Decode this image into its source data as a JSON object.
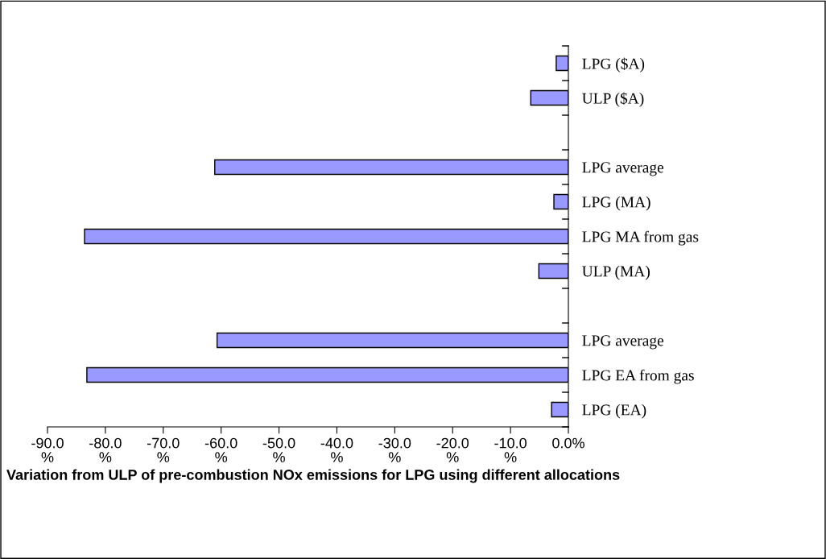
{
  "chart_data": {
    "type": "bar",
    "orientation": "horizontal",
    "title": "Variation from ULP of pre-combustion NOx emissions for LPG using different allocations",
    "categories": [
      "LPG ($A)",
      "ULP ($A)",
      null,
      "LPG average",
      "LPG (MA)",
      "LPG MA from gas",
      "ULP (MA)",
      null,
      "LPG average",
      "LPG EA from gas",
      "LPG (EA)"
    ],
    "values": [
      -2.1,
      -6.5,
      null,
      -61.1,
      -2.5,
      -83.6,
      -5.1,
      null,
      -60.7,
      -83.2,
      -2.9
    ],
    "color": "#9999ff",
    "xlim": [
      -90,
      0
    ],
    "xticks": [
      {
        "value": -90,
        "label": "-90.0\n%"
      },
      {
        "value": -80,
        "label": "-80.0\n%"
      },
      {
        "value": -70,
        "label": "-70.0\n%"
      },
      {
        "value": -60,
        "label": "-60.0\n%"
      },
      {
        "value": -50,
        "label": "-50.0\n%"
      },
      {
        "value": -40,
        "label": "-40.0\n%"
      },
      {
        "value": -30,
        "label": "-30.0\n%"
      },
      {
        "value": -20,
        "label": "-20.0\n%"
      },
      {
        "value": -10,
        "label": "-10.0\n%"
      },
      {
        "value": 0,
        "label": "0.0%"
      }
    ],
    "grid": false,
    "legend": false
  }
}
